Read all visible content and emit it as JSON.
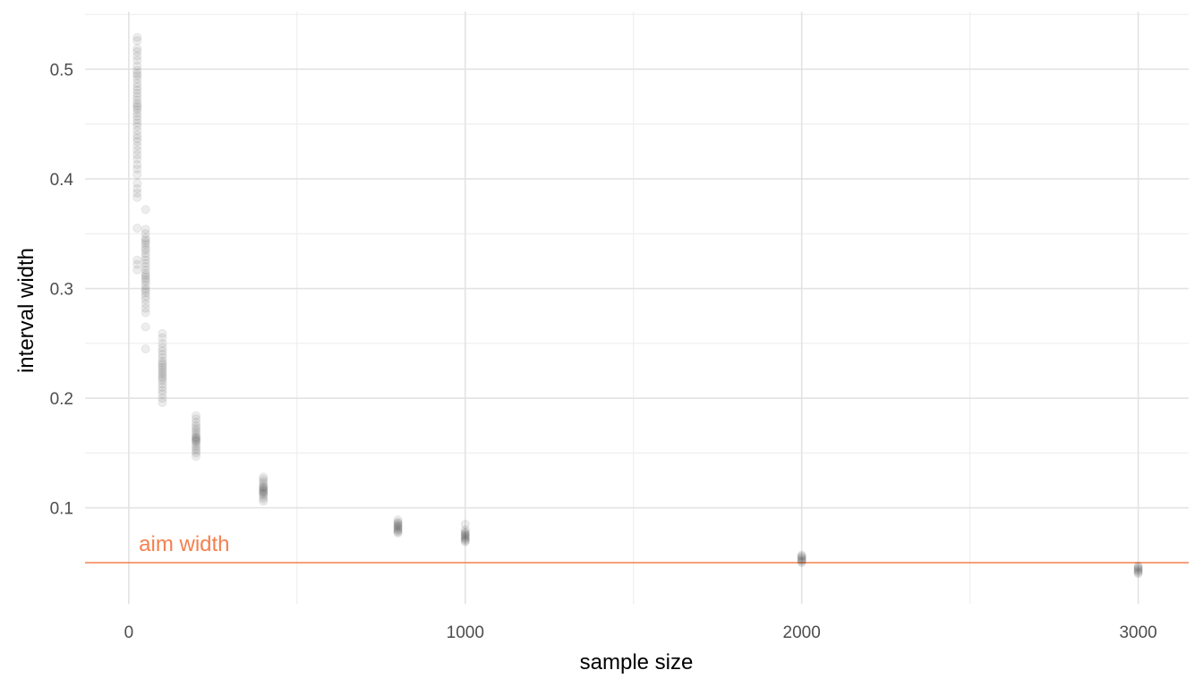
{
  "chart_data": {
    "type": "scatter",
    "title": "",
    "xlabel": "sample size",
    "ylabel": "interval width",
    "xlim": [
      -130,
      3150
    ],
    "ylim": [
      0.0125,
      0.5525
    ],
    "x_ticks": [
      0,
      1000,
      2000,
      3000
    ],
    "x_tick_labels": [
      "0",
      "1000",
      "2000",
      "3000"
    ],
    "x_minor_ticks": [
      500,
      1500,
      2500
    ],
    "y_ticks": [
      0.1,
      0.2,
      0.3,
      0.4,
      0.5
    ],
    "y_tick_labels": [
      "0.1",
      "0.2",
      "0.3",
      "0.4",
      "0.5"
    ],
    "y_minor_ticks": [
      0.05,
      0.15,
      0.25,
      0.35,
      0.45,
      0.55
    ],
    "grid": true,
    "point_color": "#000000",
    "point_opacity": 0.07,
    "groups": [
      {
        "x": 25,
        "values": [
          0.529,
          0.526,
          0.519,
          0.516,
          0.512,
          0.508,
          0.503,
          0.499,
          0.496,
          0.494,
          0.491,
          0.487,
          0.484,
          0.481,
          0.478,
          0.475,
          0.472,
          0.469,
          0.467,
          0.465,
          0.463,
          0.46,
          0.457,
          0.454,
          0.451,
          0.448,
          0.444,
          0.44,
          0.437,
          0.434,
          0.43,
          0.426,
          0.422,
          0.418,
          0.413,
          0.409,
          0.404,
          0.396,
          0.391,
          0.387,
          0.383,
          0.355,
          0.326,
          0.322,
          0.317
        ]
      },
      {
        "x": 50,
        "values": [
          0.372,
          0.354,
          0.35,
          0.346,
          0.344,
          0.342,
          0.34,
          0.337,
          0.335,
          0.332,
          0.329,
          0.326,
          0.323,
          0.32,
          0.317,
          0.314,
          0.312,
          0.31,
          0.308,
          0.306,
          0.303,
          0.3,
          0.298,
          0.296,
          0.293,
          0.29,
          0.286,
          0.282,
          0.278,
          0.265,
          0.245
        ]
      },
      {
        "x": 100,
        "values": [
          0.259,
          0.255,
          0.25,
          0.246,
          0.243,
          0.24,
          0.237,
          0.234,
          0.232,
          0.23,
          0.228,
          0.226,
          0.224,
          0.222,
          0.22,
          0.218,
          0.216,
          0.213,
          0.21,
          0.207,
          0.204,
          0.2,
          0.196
        ]
      },
      {
        "x": 200,
        "values": [
          0.184,
          0.181,
          0.178,
          0.175,
          0.173,
          0.171,
          0.169,
          0.167,
          0.165,
          0.164,
          0.163,
          0.162,
          0.161,
          0.16,
          0.158,
          0.156,
          0.154,
          0.152,
          0.15,
          0.147
        ]
      },
      {
        "x": 400,
        "values": [
          0.128,
          0.126,
          0.124,
          0.122,
          0.12,
          0.119,
          0.118,
          0.117,
          0.116,
          0.115,
          0.114,
          0.113,
          0.112,
          0.11,
          0.108,
          0.106
        ]
      },
      {
        "x": 800,
        "values": [
          0.089,
          0.087,
          0.086,
          0.085,
          0.084,
          0.083,
          0.082,
          0.081,
          0.08,
          0.079,
          0.078,
          0.077
        ]
      },
      {
        "x": 1000,
        "values": [
          0.085,
          0.08,
          0.078,
          0.077,
          0.076,
          0.075,
          0.074,
          0.073,
          0.072,
          0.071,
          0.07,
          0.069
        ]
      },
      {
        "x": 2000,
        "values": [
          0.057,
          0.056,
          0.055,
          0.054,
          0.053,
          0.052,
          0.051,
          0.05
        ]
      },
      {
        "x": 3000,
        "values": [
          0.047,
          0.046,
          0.045,
          0.044,
          0.043,
          0.042,
          0.041,
          0.04
        ]
      }
    ],
    "reference_line": {
      "y": 0.05,
      "label": "aim width",
      "color": "#f4804f",
      "label_x": 30,
      "label_y": 0.067
    }
  }
}
